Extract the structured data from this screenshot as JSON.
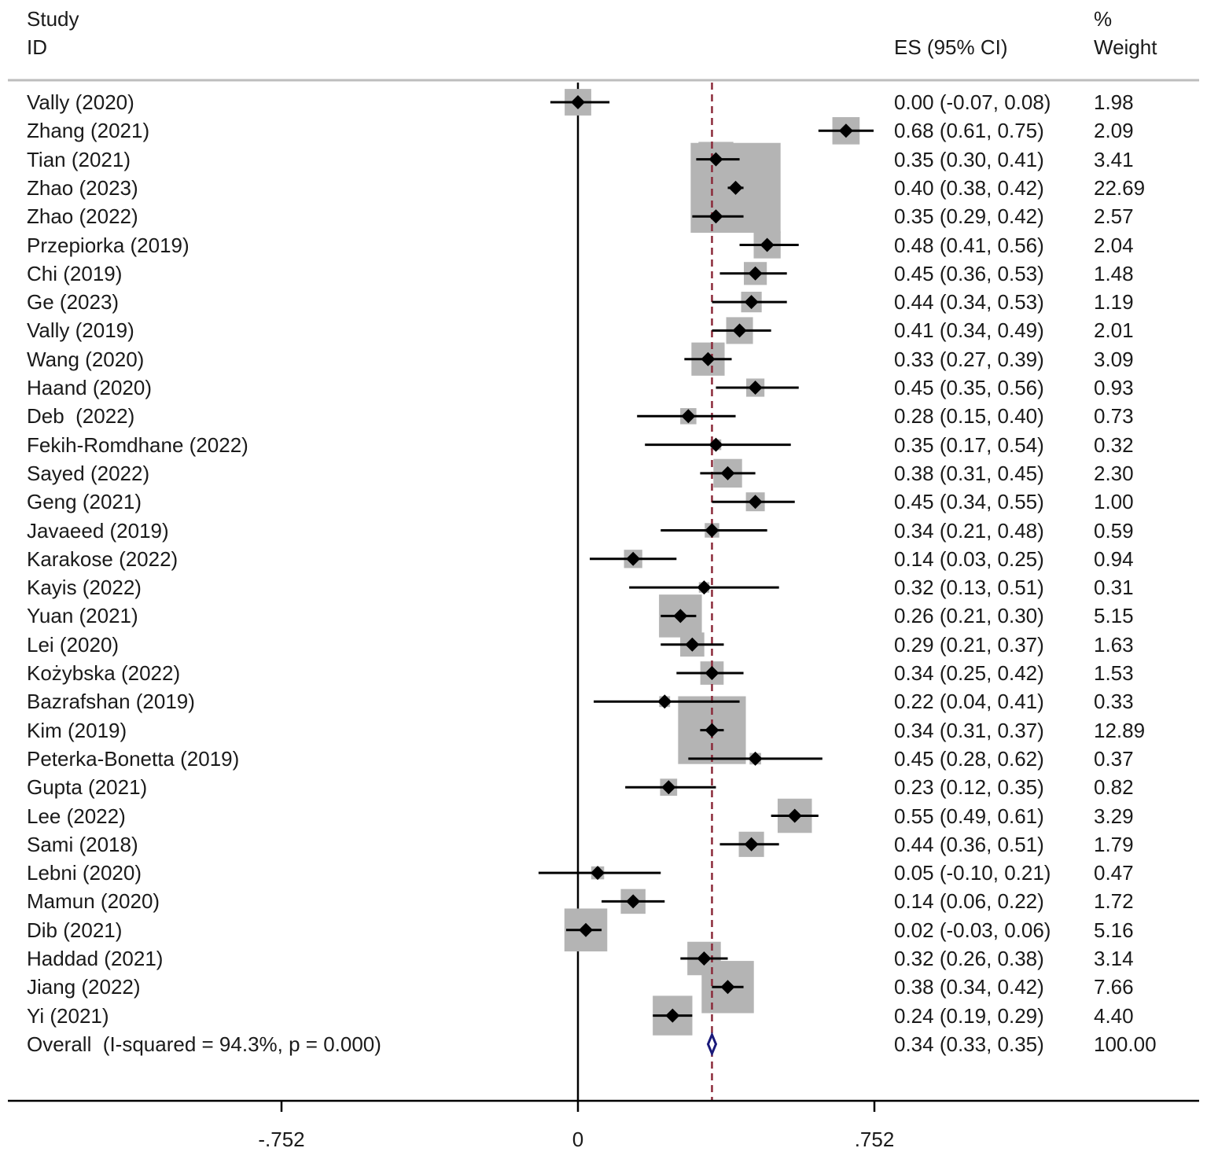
{
  "chart_data": {
    "type": "forest",
    "headers": {
      "study_line1": "Study",
      "study_line2": "ID",
      "es": "ES (95% CI)",
      "weight_line1": "%",
      "weight_line2": "Weight"
    },
    "xlim": [
      -1.1,
      1.58
    ],
    "ticks": [
      {
        "value": -0.752,
        "label": "-.752"
      },
      {
        "value": 0,
        "label": "0"
      },
      {
        "value": 0.752,
        "label": ".752"
      }
    ],
    "null_line": 0,
    "pooled_line": 0.34,
    "studies": [
      {
        "id": "Vally (2020)",
        "es": 0.0,
        "lo": -0.07,
        "hi": 0.08,
        "es_ci": "0.00 (-0.07, 0.08)",
        "weight": "1.98"
      },
      {
        "id": "Zhang (2021)",
        "es": 0.68,
        "lo": 0.61,
        "hi": 0.75,
        "es_ci": "0.68 (0.61, 0.75)",
        "weight": "2.09"
      },
      {
        "id": "Tian (2021)",
        "es": 0.35,
        "lo": 0.3,
        "hi": 0.41,
        "es_ci": "0.35 (0.30, 0.41)",
        "weight": "3.41"
      },
      {
        "id": "Zhao (2023)",
        "es": 0.4,
        "lo": 0.38,
        "hi": 0.42,
        "es_ci": "0.40 (0.38, 0.42)",
        "weight": "22.69"
      },
      {
        "id": "Zhao (2022)",
        "es": 0.35,
        "lo": 0.29,
        "hi": 0.42,
        "es_ci": "0.35 (0.29, 0.42)",
        "weight": "2.57"
      },
      {
        "id": "Przepiorka (2019)",
        "es": 0.48,
        "lo": 0.41,
        "hi": 0.56,
        "es_ci": "0.48 (0.41, 0.56)",
        "weight": "2.04"
      },
      {
        "id": "Chi (2019)",
        "es": 0.45,
        "lo": 0.36,
        "hi": 0.53,
        "es_ci": "0.45 (0.36, 0.53)",
        "weight": "1.48"
      },
      {
        "id": "Ge (2023)",
        "es": 0.44,
        "lo": 0.34,
        "hi": 0.53,
        "es_ci": "0.44 (0.34, 0.53)",
        "weight": "1.19"
      },
      {
        "id": "Vally (2019)",
        "es": 0.41,
        "lo": 0.34,
        "hi": 0.49,
        "es_ci": "0.41 (0.34, 0.49)",
        "weight": "2.01"
      },
      {
        "id": "Wang (2020)",
        "es": 0.33,
        "lo": 0.27,
        "hi": 0.39,
        "es_ci": "0.33 (0.27, 0.39)",
        "weight": "3.09"
      },
      {
        "id": "Haand (2020)",
        "es": 0.45,
        "lo": 0.35,
        "hi": 0.56,
        "es_ci": "0.45 (0.35, 0.56)",
        "weight": "0.93"
      },
      {
        "id": "Deb  (2022)",
        "es": 0.28,
        "lo": 0.15,
        "hi": 0.4,
        "es_ci": "0.28 (0.15, 0.40)",
        "weight": "0.73"
      },
      {
        "id": "Fekih-Romdhane (2022)",
        "es": 0.35,
        "lo": 0.17,
        "hi": 0.54,
        "es_ci": "0.35 (0.17, 0.54)",
        "weight": "0.32"
      },
      {
        "id": "Sayed (2022)",
        "es": 0.38,
        "lo": 0.31,
        "hi": 0.45,
        "es_ci": "0.38 (0.31, 0.45)",
        "weight": "2.30"
      },
      {
        "id": "Geng (2021)",
        "es": 0.45,
        "lo": 0.34,
        "hi": 0.55,
        "es_ci": "0.45 (0.34, 0.55)",
        "weight": "1.00"
      },
      {
        "id": "Javaeed (2019)",
        "es": 0.34,
        "lo": 0.21,
        "hi": 0.48,
        "es_ci": "0.34 (0.21, 0.48)",
        "weight": "0.59"
      },
      {
        "id": "Karakose (2022)",
        "es": 0.14,
        "lo": 0.03,
        "hi": 0.25,
        "es_ci": "0.14 (0.03, 0.25)",
        "weight": "0.94"
      },
      {
        "id": "Kayis (2022)",
        "es": 0.32,
        "lo": 0.13,
        "hi": 0.51,
        "es_ci": "0.32 (0.13, 0.51)",
        "weight": "0.31"
      },
      {
        "id": "Yuan (2021)",
        "es": 0.26,
        "lo": 0.21,
        "hi": 0.3,
        "es_ci": "0.26 (0.21, 0.30)",
        "weight": "5.15"
      },
      {
        "id": "Lei (2020)",
        "es": 0.29,
        "lo": 0.21,
        "hi": 0.37,
        "es_ci": "0.29 (0.21, 0.37)",
        "weight": "1.63"
      },
      {
        "id": "Kożybska (2022)",
        "es": 0.34,
        "lo": 0.25,
        "hi": 0.42,
        "es_ci": "0.34 (0.25, 0.42)",
        "weight": "1.53"
      },
      {
        "id": "Bazrafshan (2019)",
        "es": 0.22,
        "lo": 0.04,
        "hi": 0.41,
        "es_ci": "0.22 (0.04, 0.41)",
        "weight": "0.33"
      },
      {
        "id": "Kim (2019)",
        "es": 0.34,
        "lo": 0.31,
        "hi": 0.37,
        "es_ci": "0.34 (0.31, 0.37)",
        "weight": "12.89"
      },
      {
        "id": "Peterka-Bonetta (2019)",
        "es": 0.45,
        "lo": 0.28,
        "hi": 0.62,
        "es_ci": "0.45 (0.28, 0.62)",
        "weight": "0.37"
      },
      {
        "id": "Gupta (2021)",
        "es": 0.23,
        "lo": 0.12,
        "hi": 0.35,
        "es_ci": "0.23 (0.12, 0.35)",
        "weight": "0.82"
      },
      {
        "id": "Lee (2022)",
        "es": 0.55,
        "lo": 0.49,
        "hi": 0.61,
        "es_ci": "0.55 (0.49, 0.61)",
        "weight": "3.29"
      },
      {
        "id": "Sami (2018)",
        "es": 0.44,
        "lo": 0.36,
        "hi": 0.51,
        "es_ci": "0.44 (0.36, 0.51)",
        "weight": "1.79"
      },
      {
        "id": "Lebni (2020)",
        "es": 0.05,
        "lo": -0.1,
        "hi": 0.21,
        "es_ci": "0.05 (-0.10, 0.21)",
        "weight": "0.47"
      },
      {
        "id": "Mamun (2020)",
        "es": 0.14,
        "lo": 0.06,
        "hi": 0.22,
        "es_ci": "0.14 (0.06, 0.22)",
        "weight": "1.72"
      },
      {
        "id": "Dib (2021)",
        "es": 0.02,
        "lo": -0.03,
        "hi": 0.06,
        "es_ci": "0.02 (-0.03, 0.06)",
        "weight": "5.16"
      },
      {
        "id": "Haddad (2021)",
        "es": 0.32,
        "lo": 0.26,
        "hi": 0.38,
        "es_ci": "0.32 (0.26, 0.38)",
        "weight": "3.14"
      },
      {
        "id": "Jiang (2022)",
        "es": 0.38,
        "lo": 0.34,
        "hi": 0.42,
        "es_ci": "0.38 (0.34, 0.42)",
        "weight": "7.66"
      },
      {
        "id": "Yi (2021)",
        "es": 0.24,
        "lo": 0.19,
        "hi": 0.29,
        "es_ci": "0.24 (0.19, 0.29)",
        "weight": "4.40"
      }
    ],
    "overall": {
      "id": "Overall  (I-squared = 94.3%, p = 0.000)",
      "es": 0.34,
      "lo": 0.33,
      "hi": 0.35,
      "es_ci": "0.34 (0.33, 0.35)",
      "weight": "100.00"
    },
    "colors": {
      "weight_box": "#b4b4b4",
      "point": "#000000",
      "ci_line": "#000000",
      "pooled_line": "#8b2a3a",
      "overall_diamond": "#1a1a7a",
      "separator": "#bdbdbd"
    }
  }
}
